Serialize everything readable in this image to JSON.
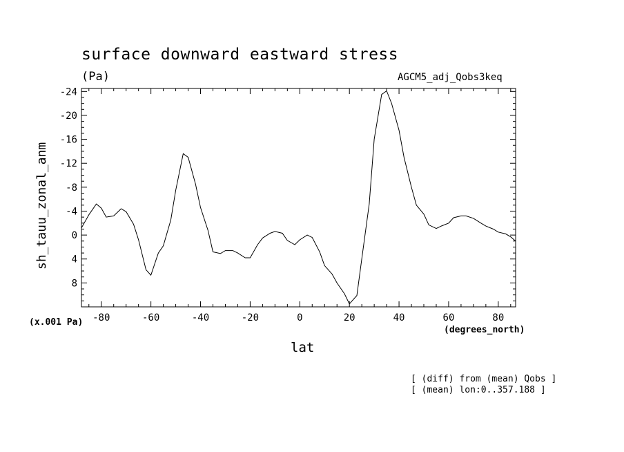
{
  "chart_data": {
    "type": "line",
    "title": "surface downward eastward stress",
    "units": "(Pa)",
    "run_label": "AGCM5_adj_Qobs3keq",
    "ylabel": "sh_tauu_zonal_anm",
    "xlabel": "lat",
    "x_units": "(degrees_north)",
    "y_scale_note": "(x.001 Pa)",
    "notes": [
      "[ (diff) from (mean) Qobs ]",
      "[ (mean) lon:0..357.188 ]"
    ],
    "xlim": [
      -88,
      87
    ],
    "ylim": [
      12,
      -24.5
    ],
    "y_inverted": true,
    "xticks": [
      -80,
      -60,
      -40,
      -20,
      0,
      20,
      40,
      60,
      80
    ],
    "xtick_labels": [
      "-80",
      "-60",
      "-40",
      "-20",
      "0",
      "20",
      "40",
      "60",
      "80"
    ],
    "yticks": [
      -24,
      -20,
      -16,
      -12,
      -8,
      -4,
      0,
      4,
      8
    ],
    "ytick_labels": [
      "-24",
      "-20",
      "-16",
      "-12",
      "-8",
      "-4",
      "0",
      "4",
      "8"
    ],
    "grid": false,
    "line_color": "#000000",
    "series": [
      {
        "x": [
          -88,
          -85,
          -82,
          -80,
          -78,
          -75,
          -72,
          -70,
          -67,
          -65,
          -62,
          -60,
          -57,
          -55,
          -52,
          -50,
          -47,
          -45,
          -42,
          -40,
          -37,
          -35,
          -32,
          -30,
          -27,
          -25,
          -22,
          -20,
          -17,
          -15,
          -12,
          -10,
          -7,
          -5,
          -2,
          0,
          3,
          5,
          8,
          10,
          13,
          15,
          18,
          20,
          23,
          25,
          28,
          30,
          33,
          35,
          37,
          40,
          42,
          45,
          47,
          50,
          52,
          55,
          57,
          60,
          62,
          65,
          67,
          70,
          73,
          75,
          78,
          80,
          83,
          85,
          87
        ],
        "y": [
          -1.2,
          -3.4,
          -5.2,
          -4.5,
          -3.0,
          -3.2,
          -4.4,
          -3.9,
          -1.8,
          0.8,
          5.8,
          6.7,
          3.0,
          1.8,
          -2.5,
          -7.5,
          -13.6,
          -13.0,
          -8.5,
          -4.6,
          -0.8,
          2.8,
          3.1,
          2.6,
          2.6,
          3.0,
          3.8,
          3.8,
          1.6,
          0.5,
          -0.3,
          -0.6,
          -0.3,
          0.9,
          1.6,
          0.8,
          0.0,
          0.4,
          2.8,
          5.1,
          6.5,
          8.0,
          9.8,
          11.5,
          10.1,
          3.9,
          -5.2,
          -16.0,
          -23.5,
          -24.1,
          -22.0,
          -17.5,
          -13.0,
          -8.0,
          -5.0,
          -3.5,
          -1.7,
          -1.1,
          -1.5,
          -2.0,
          -2.9,
          -3.2,
          -3.2,
          -2.8,
          -2.0,
          -1.5,
          -1.0,
          -0.5,
          -0.2,
          0.3,
          1.0
        ]
      }
    ]
  }
}
